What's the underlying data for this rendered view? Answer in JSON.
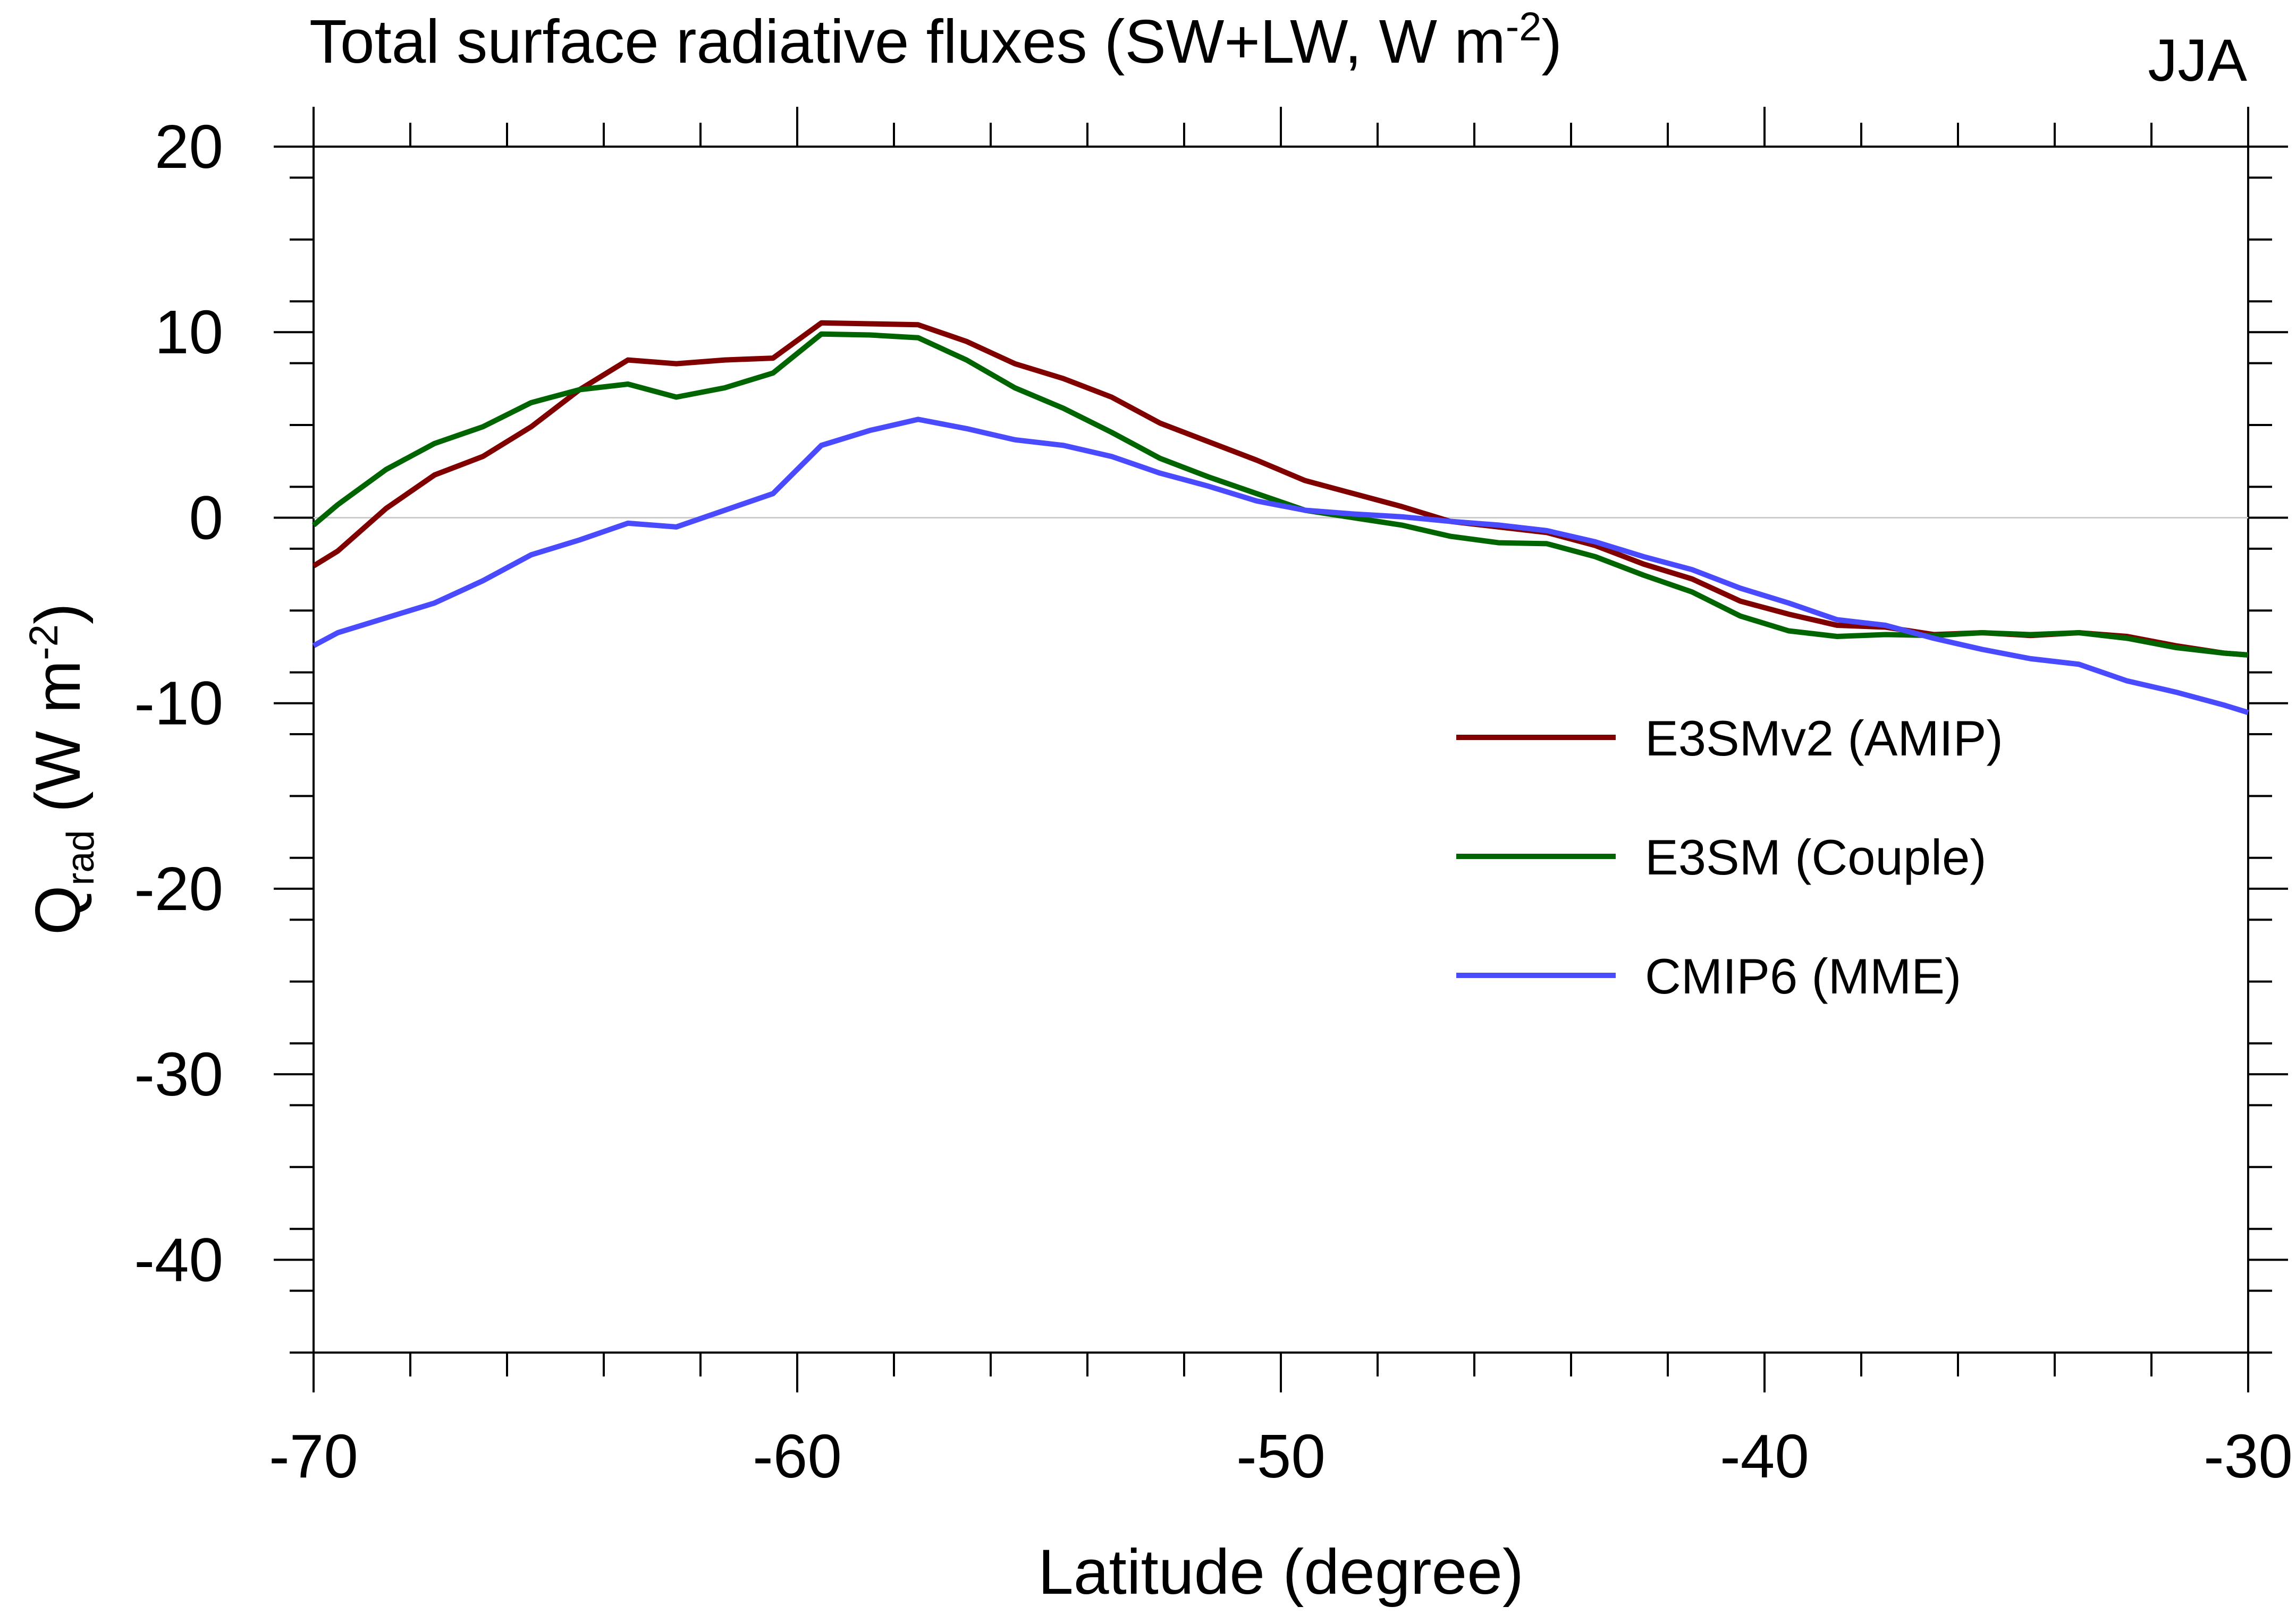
{
  "chart_data": {
    "type": "line",
    "title": "Total surface radiative fluxes (SW+LW, W m",
    "title_superscript": "-2",
    "title_end": ")",
    "season_label": "JJA",
    "xlabel": "Latitude (degree)",
    "ylabel": {
      "main": "Q",
      "subscript": "rad",
      "units_open": " (W m",
      "units_superscript": "-2",
      "units_close": ")"
    },
    "xlim": [
      -70,
      -30
    ],
    "ylim": [
      -45,
      20
    ],
    "x_major_ticks": [
      -70,
      -60,
      -50,
      -40,
      -30
    ],
    "x_tick_labels": [
      "-70",
      "-60",
      "-50",
      "-40",
      "-30"
    ],
    "x_minor_step": 2,
    "y_major_ticks": [
      20,
      10,
      0,
      -10,
      -20,
      -30,
      -40
    ],
    "y_tick_labels": [
      "20",
      "10",
      "0",
      "-10",
      "-20",
      "-30",
      "-40"
    ],
    "y_minor_step": 3.333,
    "zero_line": true,
    "legend_position": "center-right",
    "x": [
      -70,
      -69.5,
      -68.5,
      -67.5,
      -66.5,
      -65.5,
      -64.5,
      -63.5,
      -62.5,
      -61.5,
      -60.5,
      -59.5,
      -58.5,
      -57.5,
      -56.5,
      -55.5,
      -54.5,
      -53.5,
      -52.5,
      -51.5,
      -50.5,
      -49.5,
      -48.5,
      -47.5,
      -46.5,
      -45.5,
      -44.5,
      -43.5,
      -42.5,
      -41.5,
      -40.5,
      -39.5,
      -38.5,
      -37.5,
      -36.5,
      -35.5,
      -34.5,
      -33.5,
      -32.5,
      -31.5,
      -30.5,
      -30
    ],
    "series": [
      {
        "name": "E3SMv2 (AMIP)",
        "color": "#800000",
        "values": [
          -2.6,
          -1.8,
          0.5,
          2.3,
          3.3,
          4.9,
          6.9,
          8.5,
          8.3,
          8.5,
          8.6,
          10.5,
          10.45,
          10.4,
          9.5,
          8.3,
          7.5,
          6.5,
          5.1,
          4.1,
          3.1,
          2.0,
          1.3,
          0.6,
          -0.2,
          -0.5,
          -0.8,
          -1.5,
          -2.5,
          -3.3,
          -4.5,
          -5.2,
          -5.8,
          -5.9,
          -6.3,
          -6.2,
          -6.35,
          -6.2,
          -6.4,
          -6.9,
          -7.3,
          -7.4
        ]
      },
      {
        "name": "E3SM (Couple)",
        "color": "#006400",
        "values": [
          -0.4,
          0.7,
          2.6,
          4.0,
          4.9,
          6.2,
          6.9,
          7.2,
          6.5,
          7.0,
          7.8,
          9.9,
          9.85,
          9.7,
          8.5,
          7.0,
          5.9,
          4.6,
          3.2,
          2.2,
          1.3,
          0.4,
          0.0,
          -0.4,
          -1.0,
          -1.35,
          -1.4,
          -2.1,
          -3.1,
          -4.0,
          -5.3,
          -6.1,
          -6.4,
          -6.3,
          -6.35,
          -6.2,
          -6.3,
          -6.2,
          -6.5,
          -7.0,
          -7.3,
          -7.4
        ]
      },
      {
        "name": "CMIP6 (MME)",
        "color": "#4a4aff",
        "values": [
          -6.9,
          -6.2,
          -5.4,
          -4.6,
          -3.4,
          -2.0,
          -1.2,
          -0.3,
          -0.5,
          0.4,
          1.3,
          3.9,
          4.7,
          5.3,
          4.8,
          4.2,
          3.9,
          3.3,
          2.4,
          1.7,
          0.9,
          0.4,
          0.2,
          0.05,
          -0.2,
          -0.4,
          -0.7,
          -1.3,
          -2.1,
          -2.8,
          -3.8,
          -4.6,
          -5.5,
          -5.8,
          -6.5,
          -7.1,
          -7.6,
          -7.9,
          -8.8,
          -9.4,
          -10.1,
          -10.5
        ]
      }
    ]
  }
}
